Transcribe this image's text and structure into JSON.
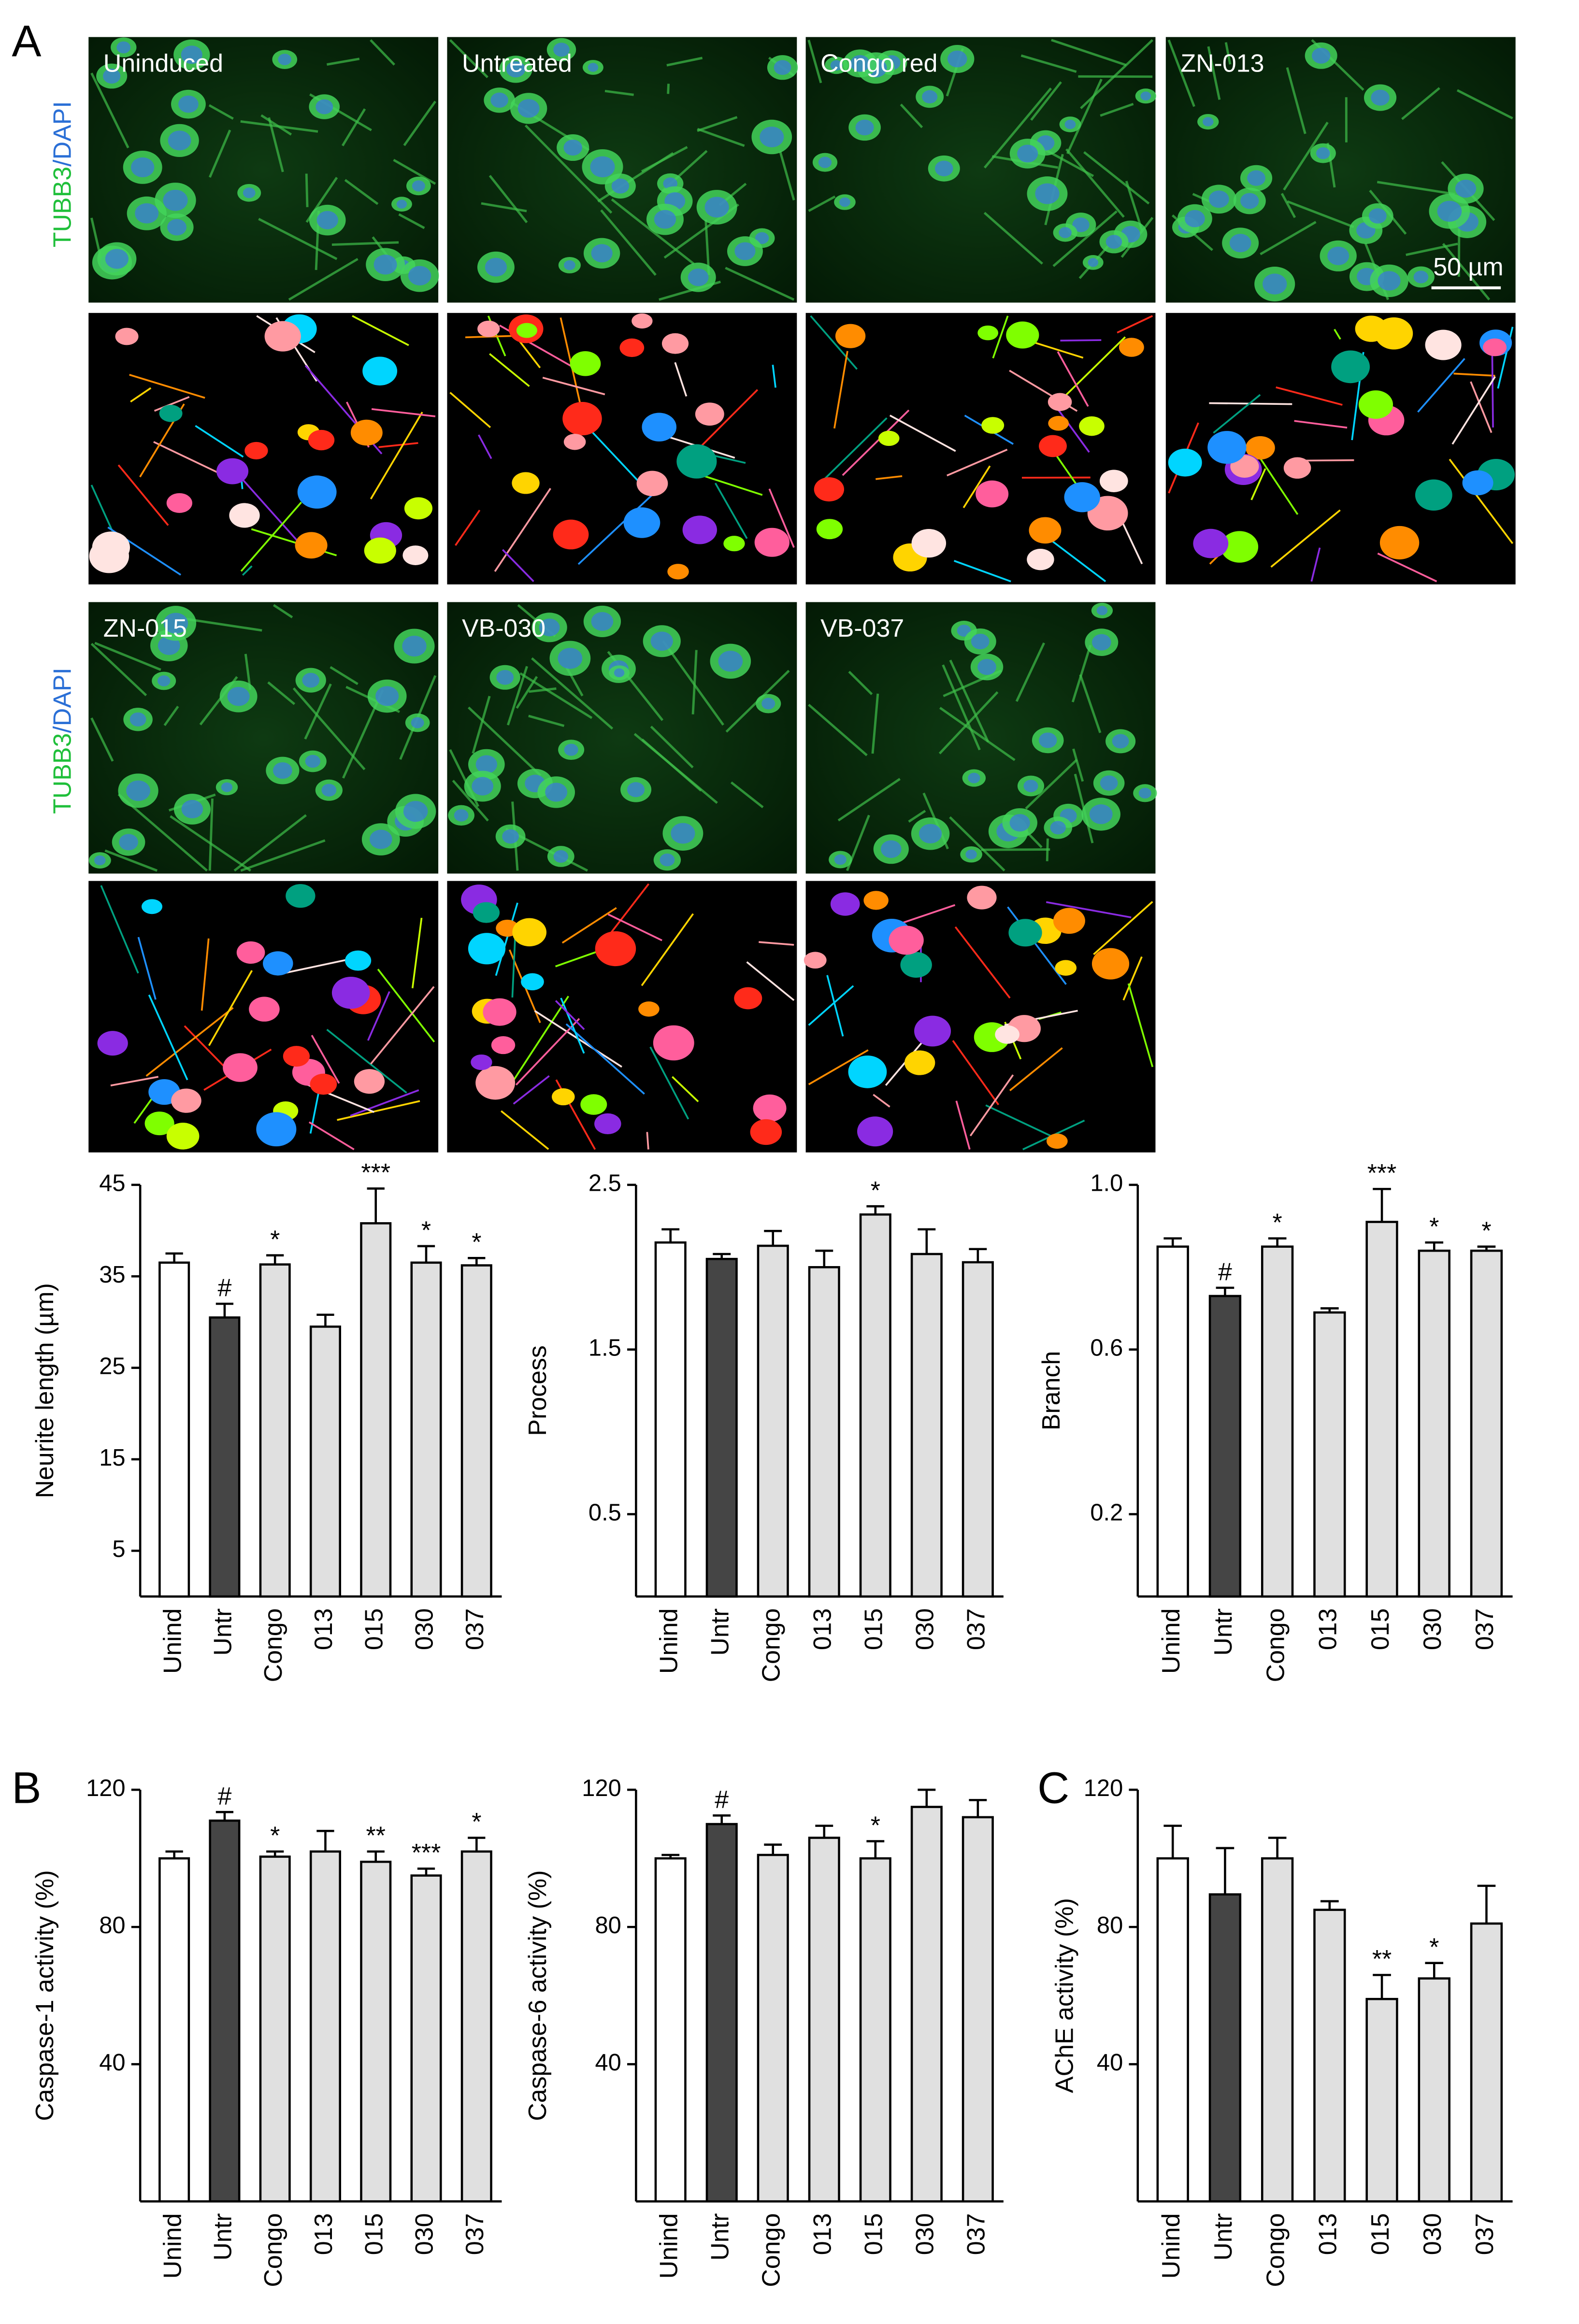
{
  "panels": [
    "A",
    "B",
    "C"
  ],
  "stain": [
    "TUBB3",
    "/DAPI"
  ],
  "scale_bar": "50 µm",
  "images": [
    "Uninduced",
    "Untreated",
    "Congo red",
    "ZN-013",
    "ZN-015",
    "VB-030",
    "VB-037"
  ],
  "chart_data": [
    {
      "type": "bar",
      "y_label": "Neurite length (µm)",
      "categories": [
        "Unind",
        "Untr",
        "Congo",
        "013",
        "015",
        "030",
        "037"
      ],
      "values": [
        36.5,
        30.5,
        36.3,
        29.5,
        40.8,
        36.5,
        36.2
      ],
      "errors": [
        1.0,
        1.5,
        1.0,
        1.3,
        3.8,
        1.8,
        0.8
      ],
      "annotations": [
        null,
        "#",
        "*",
        null,
        "***",
        "*",
        "*"
      ],
      "colors": [
        "#ffffff",
        "#454545",
        "#e0e0e0",
        "#e0e0e0",
        "#e0e0e0",
        "#e0e0e0",
        "#e0e0e0"
      ],
      "ylim": [
        0,
        45
      ],
      "yticks": [
        5,
        15,
        25,
        35,
        45
      ]
    },
    {
      "type": "bar",
      "y_label": "Process",
      "categories": [
        "Unind",
        "Untr",
        "Congo",
        "013",
        "015",
        "030",
        "037"
      ],
      "values": [
        2.15,
        2.05,
        2.13,
        2.0,
        2.32,
        2.08,
        2.03
      ],
      "errors": [
        0.08,
        0.03,
        0.09,
        0.1,
        0.05,
        0.15,
        0.08
      ],
      "annotations": [
        null,
        null,
        null,
        null,
        "*",
        null,
        null
      ],
      "colors": [
        "#ffffff",
        "#454545",
        "#e0e0e0",
        "#e0e0e0",
        "#e0e0e0",
        "#e0e0e0",
        "#e0e0e0"
      ],
      "ylim": [
        0,
        2.5
      ],
      "yticks": [
        0.5,
        1.5,
        2.5
      ]
    },
    {
      "type": "bar",
      "y_label": "Branch",
      "categories": [
        "Unind",
        "Untr",
        "Congo",
        "013",
        "015",
        "030",
        "037"
      ],
      "values": [
        0.85,
        0.73,
        0.85,
        0.69,
        0.91,
        0.84,
        0.84
      ],
      "errors": [
        0.02,
        0.02,
        0.02,
        0.01,
        0.08,
        0.02,
        0.01
      ],
      "annotations": [
        null,
        "#",
        "*",
        null,
        "***",
        "*",
        "*"
      ],
      "colors": [
        "#ffffff",
        "#454545",
        "#e0e0e0",
        "#e0e0e0",
        "#e0e0e0",
        "#e0e0e0",
        "#e0e0e0"
      ],
      "ylim": [
        0,
        1.0
      ],
      "yticks": [
        0.2,
        0.6,
        {
          "value": 1.0,
          "label": "1.0"
        }
      ]
    },
    {
      "type": "bar",
      "y_label": "Caspase-1 activity (%)",
      "categories": [
        "Unind",
        "Untr",
        "Congo",
        "013",
        "015",
        "030",
        "037"
      ],
      "values": [
        100,
        111,
        100.5,
        102,
        99,
        95,
        102
      ],
      "errors": [
        2,
        2.5,
        1.5,
        6,
        3,
        2,
        4
      ],
      "annotations": [
        null,
        "#",
        "*",
        null,
        "**",
        "***",
        "*"
      ],
      "colors": [
        "#ffffff",
        "#454545",
        "#e0e0e0",
        "#e0e0e0",
        "#e0e0e0",
        "#e0e0e0",
        "#e0e0e0"
      ],
      "ylim": [
        0,
        120
      ],
      "yticks": [
        40,
        80,
        120
      ]
    },
    {
      "type": "bar",
      "y_label": "Caspase-6 activity (%)",
      "categories": [
        "Unind",
        "Untr",
        "Congo",
        "013",
        "015",
        "030",
        "037"
      ],
      "values": [
        100,
        110,
        101,
        106,
        100,
        115,
        112
      ],
      "errors": [
        1,
        2.5,
        3,
        3.5,
        5,
        5,
        5
      ],
      "annotations": [
        null,
        "#",
        null,
        null,
        "*",
        null,
        null
      ],
      "colors": [
        "#ffffff",
        "#454545",
        "#e0e0e0",
        "#e0e0e0",
        "#e0e0e0",
        "#e0e0e0",
        "#e0e0e0"
      ],
      "ylim": [
        0,
        120
      ],
      "yticks": [
        40,
        80,
        120
      ]
    },
    {
      "type": "bar",
      "y_label": "AChE activity (%)",
      "categories": [
        "Unind",
        "Untr",
        "Congo",
        "013",
        "015",
        "030",
        "037"
      ],
      "values": [
        100,
        89.5,
        100,
        85,
        59,
        65,
        81
      ],
      "errors": [
        9.5,
        13.5,
        6,
        2.5,
        7,
        4.5,
        11
      ],
      "annotations": [
        null,
        null,
        null,
        null,
        "**",
        "*",
        null
      ],
      "colors": [
        "#ffffff",
        "#454545",
        "#e0e0e0",
        "#e0e0e0",
        "#e0e0e0",
        "#e0e0e0",
        "#e0e0e0"
      ],
      "ylim": [
        0,
        120
      ],
      "yticks": [
        40,
        80,
        120
      ]
    }
  ]
}
